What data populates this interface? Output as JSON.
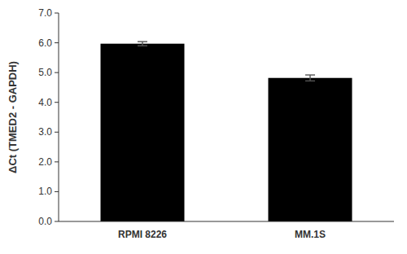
{
  "chart_data": {
    "type": "bar",
    "ylabel": "ΔCt (TMED2 - GAPDH)",
    "categories": [
      "RPMI 8226",
      "MM.1S"
    ],
    "values": [
      5.97,
      4.82
    ],
    "errors": [
      0.07,
      0.1
    ],
    "color": "#000000",
    "ylim": [
      0,
      7.0
    ],
    "yticks": [
      {
        "value": 0.0,
        "label": "0.0"
      },
      {
        "value": 1.0,
        "label": "1.0"
      },
      {
        "value": 2.0,
        "label": "2.0"
      },
      {
        "value": 3.0,
        "label": "3.0"
      },
      {
        "value": 4.0,
        "label": "4.0"
      },
      {
        "value": 5.0,
        "label": "5.0"
      },
      {
        "value": 6.0,
        "label": "6.0"
      },
      {
        "value": 7.0,
        "label": "7.0"
      }
    ],
    "grid": false
  }
}
